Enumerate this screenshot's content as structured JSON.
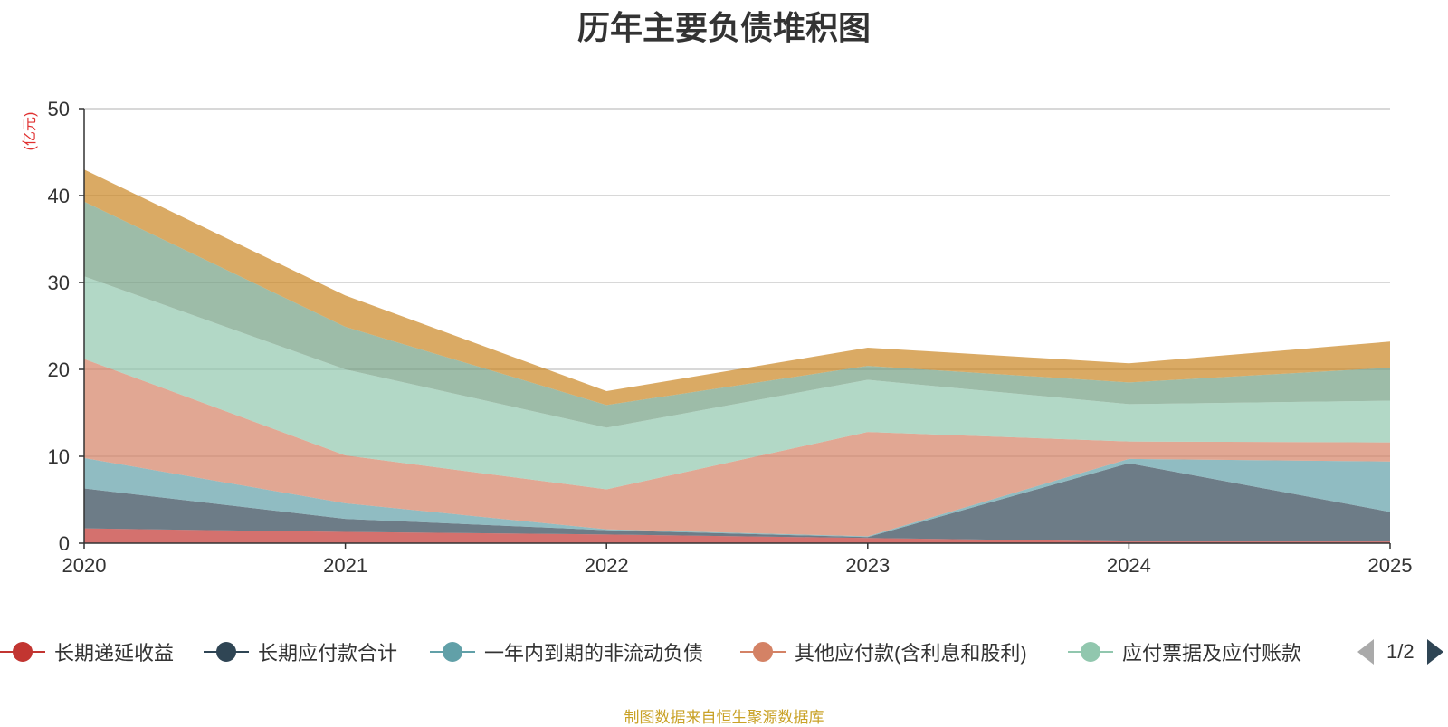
{
  "chart_data": {
    "type": "area",
    "stacked": true,
    "title": "历年主要负债堆积图",
    "ylabel": "(亿元)",
    "xlabel": "",
    "ylim": [
      0,
      50
    ],
    "yticks": [
      0,
      10,
      20,
      30,
      40,
      50
    ],
    "grid": true,
    "categories": [
      "2020",
      "2021",
      "2022",
      "2023",
      "2024",
      "2025"
    ],
    "series": [
      {
        "name": "长期递延收益",
        "color": "#c23531",
        "values": [
          1.7,
          1.3,
          1.0,
          0.6,
          0.2,
          0.2
        ]
      },
      {
        "name": "长期应付款合计",
        "color": "#2f4554",
        "values": [
          4.6,
          1.5,
          0.5,
          0.1,
          9.0,
          3.4
        ]
      },
      {
        "name": "一年内到期的非流动负债",
        "color": "#61a0a8",
        "values": [
          3.5,
          1.8,
          0.1,
          0.1,
          0.5,
          5.8
        ]
      },
      {
        "name": "其他应付款(含利息和股利)",
        "color": "#d48265",
        "values": [
          11.4,
          5.5,
          4.6,
          12.0,
          2.0,
          2.2
        ]
      },
      {
        "name": "应付票据及应付账款",
        "color": "#91c7ae",
        "values": [
          9.5,
          9.9,
          7.1,
          6.0,
          4.3,
          4.8
        ]
      },
      {
        "name": "",
        "color": "#749f83",
        "values": [
          8.6,
          4.9,
          2.6,
          1.6,
          2.5,
          3.8
        ]
      },
      {
        "name": "",
        "color": "#ca8622",
        "values": [
          3.7,
          3.6,
          1.6,
          2.1,
          2.2,
          3.0
        ]
      }
    ]
  },
  "legend": {
    "items": [
      {
        "label": "长期递延收益",
        "color": "#c23531"
      },
      {
        "label": "长期应付款合计",
        "color": "#2f4554"
      },
      {
        "label": "一年内到期的非流动负债",
        "color": "#61a0a8"
      },
      {
        "label": "其他应付款(含利息和股利)",
        "color": "#d48265"
      },
      {
        "label": "应付票据及应付账款",
        "color": "#91c7ae"
      }
    ],
    "page_text": "1/2"
  },
  "source_text": "制图数据来自恒生聚源数据库"
}
